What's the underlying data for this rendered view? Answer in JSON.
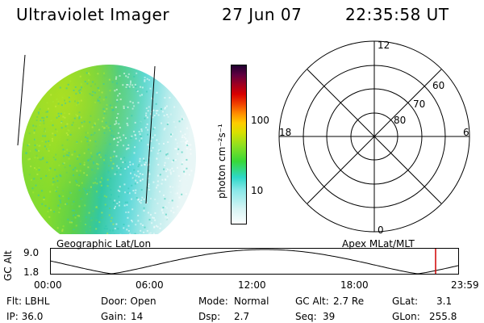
{
  "header": {
    "title": "Ultraviolet Imager",
    "date": "27 Jun 07",
    "time": "22:35:58 UT"
  },
  "colorbar": {
    "label": "photon cm⁻²s⁻¹",
    "ticks": [
      "100",
      "10"
    ],
    "scale": "log",
    "colors": [
      "#ffffff",
      "#d8f4f4",
      "#88e8e8",
      "#2ed8c8",
      "#38d838",
      "#90e020",
      "#d8e000",
      "#ffcc00",
      "#ff8c00",
      "#f04000",
      "#d80000",
      "#a00020",
      "#600040",
      "#200030"
    ]
  },
  "polar": {
    "mlt_labels": [
      "12",
      "6",
      "0",
      "18"
    ],
    "lat_labels": [
      "60",
      "70",
      "80"
    ]
  },
  "timeline": {
    "left_label": "Geographic Lat/Lon",
    "right_label": "Apex  MLat/MLT",
    "y_axis_label": "GC Alt",
    "y_ticks": [
      "9.0",
      "1.8"
    ],
    "x_ticks": [
      "00:00",
      "06:00",
      "12:00",
      "18:00",
      "23:59"
    ],
    "marker_color": "#d00000"
  },
  "info": {
    "flt": "Flt: LBHL",
    "door": "Door: Open",
    "mode_label": "Mode:",
    "mode_value": "Normal",
    "gcalt_label": "GC Alt:",
    "gcalt_value": "2.7 Re",
    "glat_label": "GLat:",
    "glat_value": "3.1",
    "ip": "IP: 36.0",
    "gain_label": "Gain:",
    "gain_value": "14",
    "dsp_label": "Dsp:",
    "dsp_value": "2.7",
    "seq_label": "Seq:",
    "seq_value": "39",
    "glon_label": "GLon:",
    "glon_value": "255.8"
  }
}
